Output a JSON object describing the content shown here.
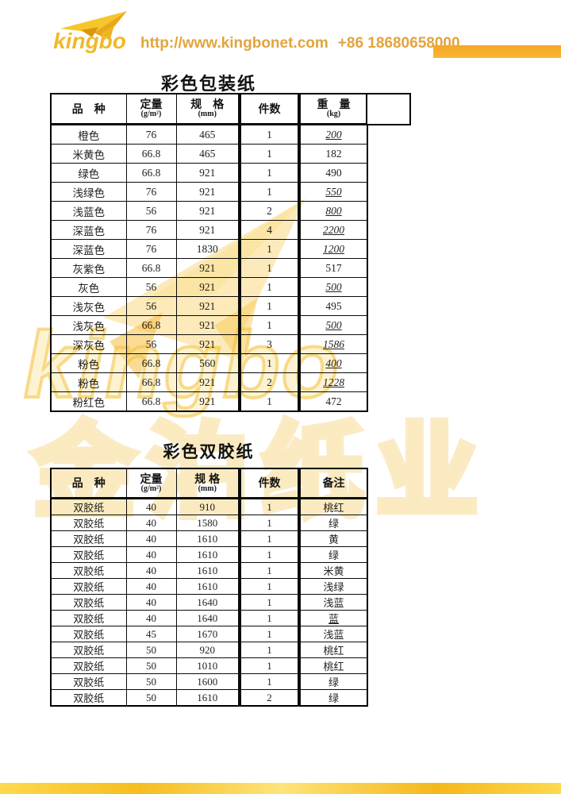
{
  "header": {
    "brand": "kingbo",
    "url": "http://www.kingbonet.com",
    "phone": "+86 18680658000",
    "brand_color": "#efb929",
    "link_color": "#e2a43c"
  },
  "watermark": {
    "brand_text": "kingbo",
    "cn_text": "金泊纸业",
    "color": "#f3be3e"
  },
  "table1": {
    "title": "彩色包装纸",
    "columns": [
      {
        "label": "品　种",
        "sub": ""
      },
      {
        "label": "定量",
        "sub": "(g/m²)"
      },
      {
        "label": "规　格",
        "sub": "(mm)"
      },
      {
        "label": "件数",
        "sub": ""
      },
      {
        "label": "重　量",
        "sub": "(kg)"
      },
      {
        "label": "",
        "sub": ""
      }
    ],
    "rows": [
      {
        "variety": "橙色",
        "gsm": "76",
        "spec": "465",
        "count": "1",
        "weight": "200",
        "edited": true
      },
      {
        "variety": "米黄色",
        "gsm": "66.8",
        "spec": "465",
        "count": "1",
        "weight": "182",
        "edited": false
      },
      {
        "variety": "绿色",
        "gsm": "66.8",
        "spec": "921",
        "count": "1",
        "weight": "490",
        "edited": false
      },
      {
        "variety": "浅绿色",
        "gsm": "76",
        "spec": "921",
        "count": "1",
        "weight": "550",
        "edited": true
      },
      {
        "variety": "浅蓝色",
        "gsm": "56",
        "spec": "921",
        "count": "2",
        "weight": "800",
        "edited": true
      },
      {
        "variety": "深蓝色",
        "gsm": "76",
        "spec": "921",
        "count": "4",
        "weight": "2200",
        "edited": true
      },
      {
        "variety": "深蓝色",
        "gsm": "76",
        "spec": "1830",
        "count": "1",
        "weight": "1200",
        "edited": true
      },
      {
        "variety": "灰紫色",
        "gsm": "66.8",
        "spec": "921",
        "count": "1",
        "weight": "517",
        "edited": false
      },
      {
        "variety": "灰色",
        "gsm": "56",
        "spec": "921",
        "count": "1",
        "weight": "500",
        "edited": true
      },
      {
        "variety": "浅灰色",
        "gsm": "56",
        "spec": "921",
        "count": "1",
        "weight": "495",
        "edited": false
      },
      {
        "variety": "浅灰色",
        "gsm": "66.8",
        "spec": "921",
        "count": "1",
        "weight": "500",
        "edited": true
      },
      {
        "variety": "深灰色",
        "gsm": "56",
        "spec": "921",
        "count": "3",
        "weight": "1586",
        "edited": true
      },
      {
        "variety": "粉色",
        "gsm": "66.8",
        "spec": "560",
        "count": "1",
        "weight": "400",
        "edited": true
      },
      {
        "variety": "粉色",
        "gsm": "66.8",
        "spec": "921",
        "count": "2",
        "weight": "1228",
        "edited": true
      },
      {
        "variety": "粉红色",
        "gsm": "66.8",
        "spec": "921",
        "count": "1",
        "weight": "472",
        "edited": false
      }
    ]
  },
  "table2": {
    "title": "彩色双胶纸",
    "columns": [
      {
        "label": "品　种",
        "sub": ""
      },
      {
        "label": "定量",
        "sub": "(g/m²)"
      },
      {
        "label": "规 格",
        "sub": "(mm)"
      },
      {
        "label": "件数",
        "sub": ""
      },
      {
        "label": "备注",
        "sub": ""
      }
    ],
    "rows": [
      {
        "variety": "双胶纸",
        "gsm": "40",
        "spec": "910",
        "count": "1",
        "remark": "桃红",
        "underline": false
      },
      {
        "variety": "双胶纸",
        "gsm": "40",
        "spec": "1580",
        "count": "1",
        "remark": "绿",
        "underline": false
      },
      {
        "variety": "双胶纸",
        "gsm": "40",
        "spec": "1610",
        "count": "1",
        "remark": "黄",
        "underline": false
      },
      {
        "variety": "双胶纸",
        "gsm": "40",
        "spec": "1610",
        "count": "1",
        "remark": "绿",
        "underline": false
      },
      {
        "variety": "双胶纸",
        "gsm": "40",
        "spec": "1610",
        "count": "1",
        "remark": "米黄",
        "underline": false
      },
      {
        "variety": "双胶纸",
        "gsm": "40",
        "spec": "1610",
        "count": "1",
        "remark": "浅绿",
        "underline": false
      },
      {
        "variety": "双胶纸",
        "gsm": "40",
        "spec": "1640",
        "count": "1",
        "remark": "浅蓝",
        "underline": false
      },
      {
        "variety": "双胶纸",
        "gsm": "40",
        "spec": "1640",
        "count": "1",
        "remark": "蓝",
        "underline": true
      },
      {
        "variety": "双胶纸",
        "gsm": "45",
        "spec": "1670",
        "count": "1",
        "remark": "浅蓝",
        "underline": false
      },
      {
        "variety": "双胶纸",
        "gsm": "50",
        "spec": "920",
        "count": "1",
        "remark": "桃红",
        "underline": false
      },
      {
        "variety": "双胶纸",
        "gsm": "50",
        "spec": "1010",
        "count": "1",
        "remark": "桃红",
        "underline": false
      },
      {
        "variety": "双胶纸",
        "gsm": "50",
        "spec": "1600",
        "count": "1",
        "remark": "绿",
        "underline": false
      },
      {
        "variety": "双胶纸",
        "gsm": "50",
        "spec": "1610",
        "count": "2",
        "remark": "绿",
        "underline": false
      }
    ]
  }
}
